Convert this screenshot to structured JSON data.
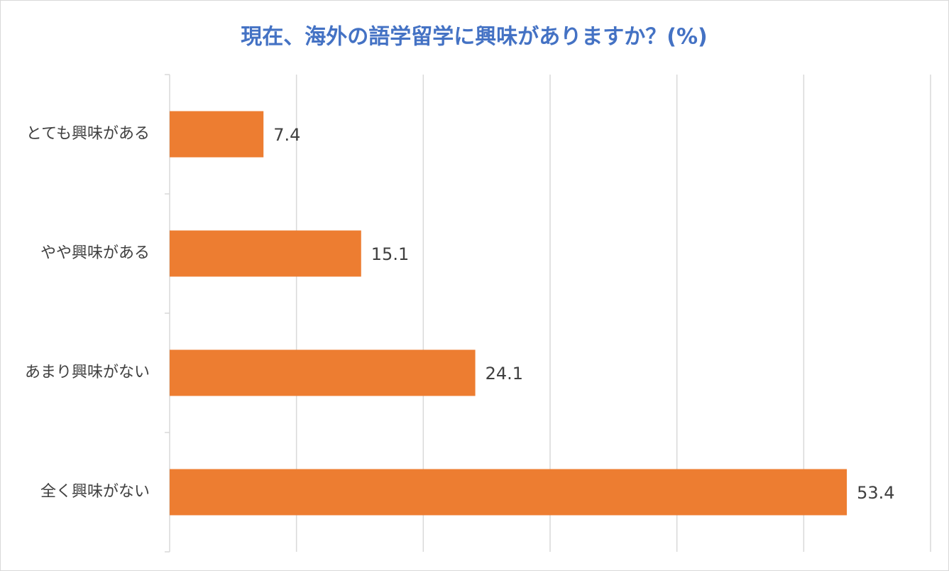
{
  "chart_data": {
    "type": "barh",
    "title": "現在、海外の語学留学に興味がありますか？(%)",
    "categories": [
      "とても興味がある",
      "やや興味がある",
      "あまり興味がない",
      "全く興味がない"
    ],
    "values": [
      7.4,
      15.1,
      24.1,
      53.4
    ],
    "color": "#ed7d31",
    "xlim": [
      0,
      60
    ],
    "xticks": [
      0,
      10,
      20,
      30,
      40,
      50,
      60
    ],
    "grid": true,
    "show_tick_labels": false,
    "data_labels": true
  }
}
